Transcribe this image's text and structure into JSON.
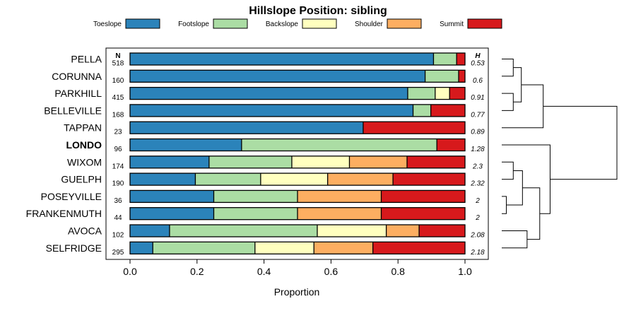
{
  "chart_data": {
    "type": "bar",
    "subtype": "stacked-horizontal-proportion",
    "title": "Hillslope Position: sibling",
    "xlabel": "Proportion",
    "ylabel": "",
    "xlim": [
      0,
      1
    ],
    "x_ticks": [
      0,
      0.2,
      0.4,
      0.6,
      0.8,
      1
    ],
    "x_tick_labels": [
      "0.0",
      "0.2",
      "0.4",
      "0.6",
      "0.8",
      "1.0"
    ],
    "legend_position": "top",
    "n_header": "N",
    "h_header": "H",
    "highlight_category": "LONDO",
    "series": [
      {
        "name": "Toeslope",
        "color": "#2b83ba"
      },
      {
        "name": "Footslope",
        "color": "#abdda4"
      },
      {
        "name": "Backslope",
        "color": "#ffffbf"
      },
      {
        "name": "Shoulder",
        "color": "#fdae61"
      },
      {
        "name": "Summit",
        "color": "#d7191c"
      }
    ],
    "categories": [
      {
        "name": "PELLA",
        "n": "518",
        "h": "0.53",
        "values": [
          0.906,
          0.069,
          0.0,
          0.0,
          0.025
        ]
      },
      {
        "name": "CORUNNA",
        "n": "160",
        "h": "0.6",
        "values": [
          0.881,
          0.1,
          0.0,
          0.0,
          0.019
        ]
      },
      {
        "name": "PARKHILL",
        "n": "415",
        "h": "0.91",
        "values": [
          0.829,
          0.082,
          0.043,
          0.0,
          0.046
        ]
      },
      {
        "name": "BELLEVILLE",
        "n": "168",
        "h": "0.77",
        "values": [
          0.845,
          0.053,
          0.0,
          0.0,
          0.102
        ]
      },
      {
        "name": "TAPPAN",
        "n": "23",
        "h": "0.89",
        "values": [
          0.696,
          0.0,
          0.0,
          0.0,
          0.304
        ]
      },
      {
        "name": "LONDO",
        "n": "96",
        "h": "1.28",
        "values": [
          0.333,
          0.583,
          0.0,
          0.0,
          0.084
        ]
      },
      {
        "name": "WIXOM",
        "n": "174",
        "h": "2.3",
        "values": [
          0.236,
          0.247,
          0.172,
          0.172,
          0.173
        ]
      },
      {
        "name": "GUELPH",
        "n": "190",
        "h": "2.32",
        "values": [
          0.195,
          0.195,
          0.2,
          0.195,
          0.215
        ]
      },
      {
        "name": "POSEYVILLE",
        "n": "36",
        "h": "2",
        "values": [
          0.25,
          0.25,
          0.0,
          0.25,
          0.25
        ]
      },
      {
        "name": "FRANKENMUTH",
        "n": "44",
        "h": "2",
        "values": [
          0.25,
          0.25,
          0.0,
          0.25,
          0.25
        ]
      },
      {
        "name": "AVOCA",
        "n": "102",
        "h": "2.08",
        "values": [
          0.118,
          0.441,
          0.206,
          0.098,
          0.137
        ]
      },
      {
        "name": "SELFRIDGE",
        "n": "295",
        "h": "2.18",
        "values": [
          0.068,
          0.305,
          0.176,
          0.176,
          0.275
        ]
      }
    ],
    "dendrogram": {
      "merges": [
        {
          "a": "PELLA",
          "b": "CORUNNA",
          "height": 0.1
        },
        {
          "a": "POSEYVILLE",
          "b": "FRANKENMUTH",
          "height": 0.04
        },
        {
          "a": "PARKHILL",
          "b": "BELLEVILLE",
          "height": 0.1
        },
        {
          "a": "WIXOM",
          "b": "GUELPH",
          "height": 0.1
        },
        {
          "a": "AVOCA",
          "b": "SELFRIDGE",
          "height": 0.22
        },
        {
          "a": "PELLA+CORUNNA",
          "b": "PARKHILL+BELLEVILLE",
          "height": 0.17
        },
        {
          "a": "WIXOM+GUELPH",
          "b": "POSEYVILLE+FRANKENMUTH",
          "height": 0.18
        },
        {
          "a": "PELLA..BELLEVILLE",
          "b": "TAPPAN",
          "height": 0.36
        },
        {
          "a": "WIXOM..FRANKENMUTH",
          "b": "AVOCA+SELFRIDGE",
          "height": 0.33
        },
        {
          "a": "LONDO",
          "b": "WIXOM..SELFRIDGE",
          "height": 0.42
        },
        {
          "a": "PELLA..TAPPAN",
          "b": "LONDO..SELFRIDGE",
          "height": 1.0
        }
      ]
    }
  }
}
